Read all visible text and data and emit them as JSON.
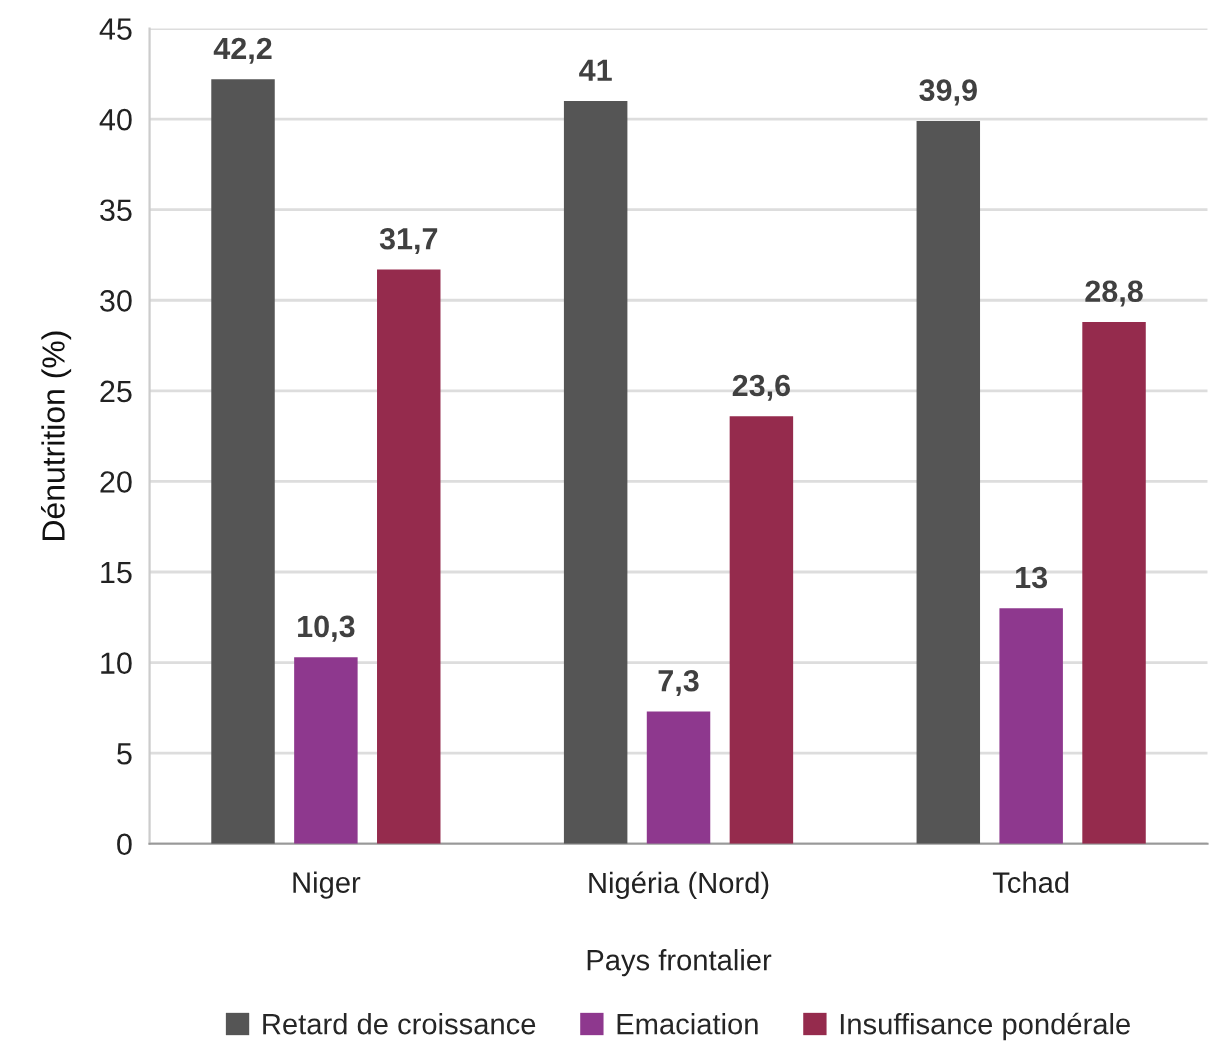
{
  "chart_data": {
    "type": "bar",
    "xlabel": "Pays frontalier",
    "ylabel": "Dénutrition (%)",
    "categories": [
      "Niger",
      "Nigéria (Nord)",
      "Tchad"
    ],
    "series": [
      {
        "name": "Retard de croissance",
        "color": "#555555",
        "values": [
          42.2,
          41,
          39.9
        ],
        "value_labels": [
          "42,2",
          "41",
          "39,9"
        ]
      },
      {
        "name": "Emaciation",
        "color": "#8e388e",
        "values": [
          10.3,
          7.3,
          13
        ],
        "value_labels": [
          "10,3",
          "7,3",
          "13"
        ]
      },
      {
        "name": "Insuffisance pondérale",
        "color": "#952b4d",
        "values": [
          31.7,
          23.6,
          28.8
        ],
        "value_labels": [
          "31,7",
          "23,6",
          "28,8"
        ]
      }
    ],
    "ylim": [
      0,
      45
    ],
    "yticks": [
      0,
      5,
      10,
      15,
      20,
      25,
      30,
      35,
      40,
      45
    ],
    "grid": "y",
    "legend": "bottom"
  }
}
